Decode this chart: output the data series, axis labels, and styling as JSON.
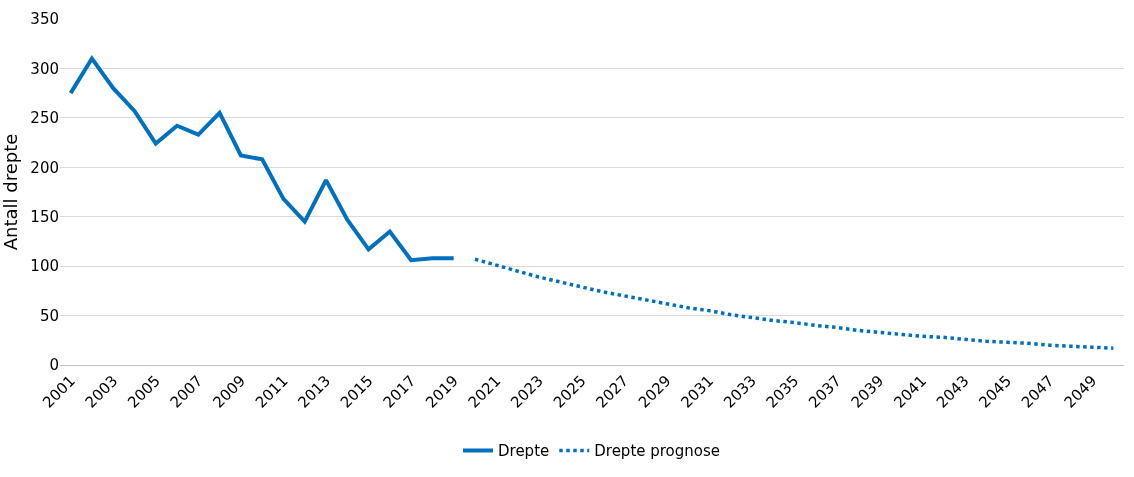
{
  "chart_data": {
    "type": "line",
    "ylabel": "Antall drepte",
    "xlim": [
      2000.5,
      2050.5
    ],
    "xticks": [
      2001,
      2003,
      2005,
      2007,
      2009,
      2011,
      2013,
      2015,
      2017,
      2019,
      2021,
      2023,
      2025,
      2027,
      2029,
      2031,
      2033,
      2035,
      2037,
      2039,
      2041,
      2043,
      2045,
      2047,
      2049
    ],
    "ylim": [
      0,
      350
    ],
    "yticks": [
      0,
      50,
      100,
      150,
      200,
      250,
      300,
      350
    ],
    "grid": "y",
    "legend": "bottom",
    "marker": "none",
    "series": [
      {
        "name": "Drepte",
        "color": "#0070c0",
        "line_style": "solid",
        "x": [
          2001,
          2002,
          2003,
          2004,
          2005,
          2006,
          2007,
          2008,
          2009,
          2010,
          2011,
          2012,
          2013,
          2014,
          2015,
          2016,
          2017,
          2018,
          2019
        ],
        "values": [
          275,
          310,
          280,
          257,
          224,
          242,
          233,
          255,
          212,
          208,
          168,
          145,
          187,
          147,
          117,
          135,
          106,
          108,
          108
        ]
      },
      {
        "name": "Drepte prognose",
        "color": "#0070c0",
        "line_style": "dotted",
        "x": [
          2020,
          2021,
          2022,
          2023,
          2024,
          2025,
          2026,
          2027,
          2028,
          2029,
          2030,
          2031,
          2032,
          2033,
          2034,
          2035,
          2036,
          2037,
          2038,
          2039,
          2040,
          2041,
          2042,
          2043,
          2044,
          2045,
          2046,
          2047,
          2048,
          2049,
          2050
        ],
        "values": [
          107,
          101,
          95,
          89,
          84,
          79,
          74,
          70,
          66,
          62,
          58,
          55,
          51,
          48,
          45,
          43,
          40,
          38,
          35,
          33,
          31,
          29,
          28,
          26,
          24,
          23,
          22,
          20,
          19,
          18,
          17
        ]
      }
    ]
  }
}
